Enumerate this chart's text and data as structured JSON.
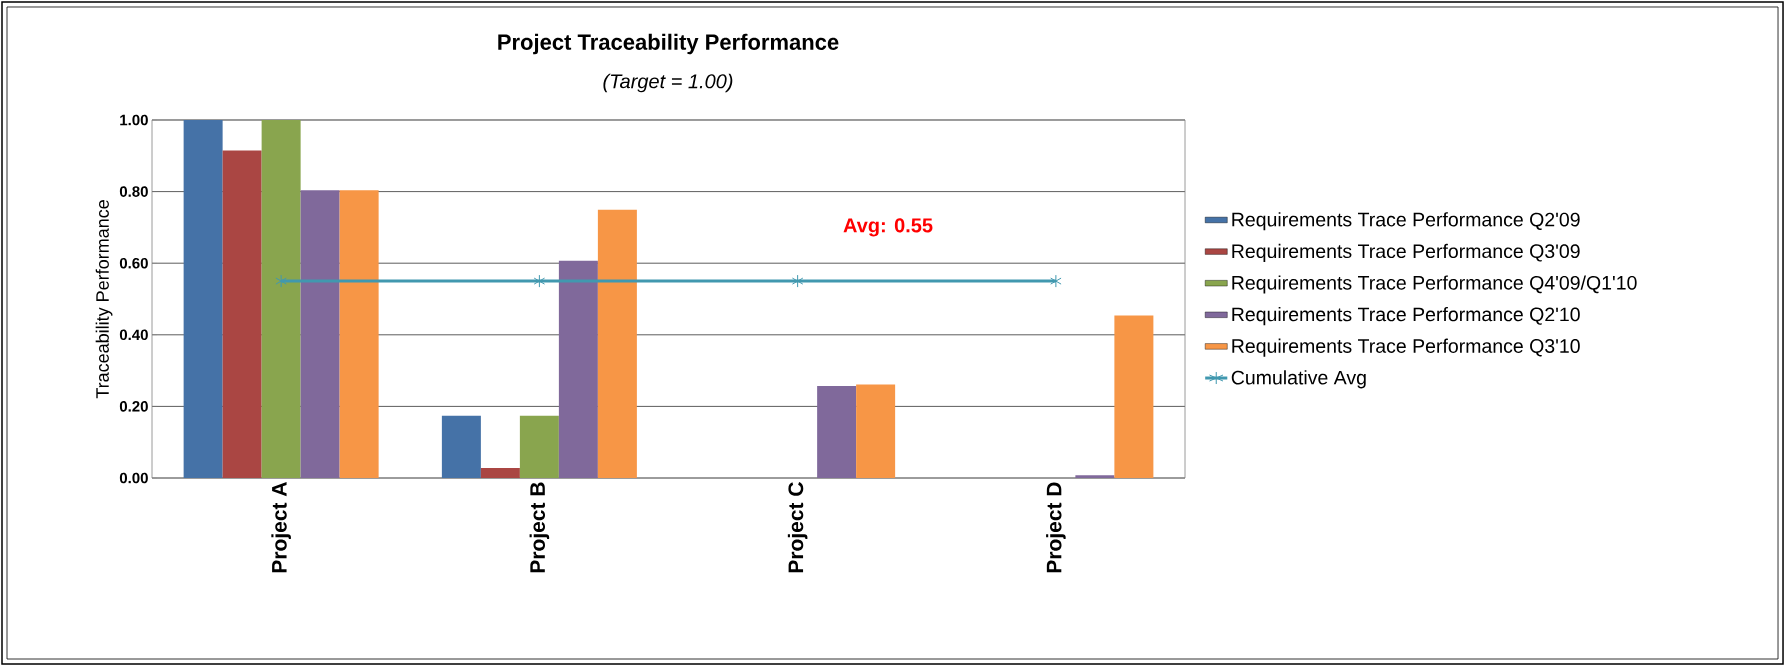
{
  "chart_data": {
    "type": "bar",
    "title": "Project Traceability Performance",
    "subtitle": "(Target = 1.00)",
    "ylabel": "Traceability Performance",
    "categories": [
      "Project A",
      "Project B",
      "Project C",
      "Project D"
    ],
    "series": [
      {
        "name": "Requirements Trace Performance Q2'09",
        "color": "#4572a7",
        "values": [
          1.0,
          0.174,
          null,
          null
        ]
      },
      {
        "name": "Requirements Trace Performance Q3'09",
        "color": "#aa4643",
        "values": [
          0.915,
          0.028,
          null,
          null
        ]
      },
      {
        "name": "Requirements Trace Performance Q4'09/Q1'10",
        "color": "#89a54e",
        "values": [
          1.0,
          0.174,
          null,
          null
        ]
      },
      {
        "name": "Requirements Trace Performance Q2'10",
        "color": "#80699b",
        "values": [
          0.804,
          0.607,
          0.257,
          0.008
        ]
      },
      {
        "name": "Requirements Trace Performance Q3'10",
        "color": "#f79646",
        "values": [
          0.804,
          0.749,
          0.261,
          0.454
        ]
      },
      {
        "name": "Cumulative Avg",
        "type": "line",
        "color": "#4198af",
        "marker": "cross",
        "values": [
          0.55,
          0.55,
          0.55,
          0.55
        ]
      }
    ],
    "annotations": [
      "Avg: 0.55"
    ],
    "ylim": [
      0,
      1.0
    ],
    "yticks": [
      {
        "value": 0,
        "label": "0.00"
      },
      {
        "value": 0.2,
        "label": "0.20"
      },
      {
        "value": 0.4,
        "label": "0.40"
      },
      {
        "value": 0.6,
        "label": "0.60"
      },
      {
        "value": 0.8,
        "label": "0.80"
      },
      {
        "value": 1.0,
        "label": "1.00"
      }
    ],
    "grid": "y",
    "legend": "right"
  }
}
